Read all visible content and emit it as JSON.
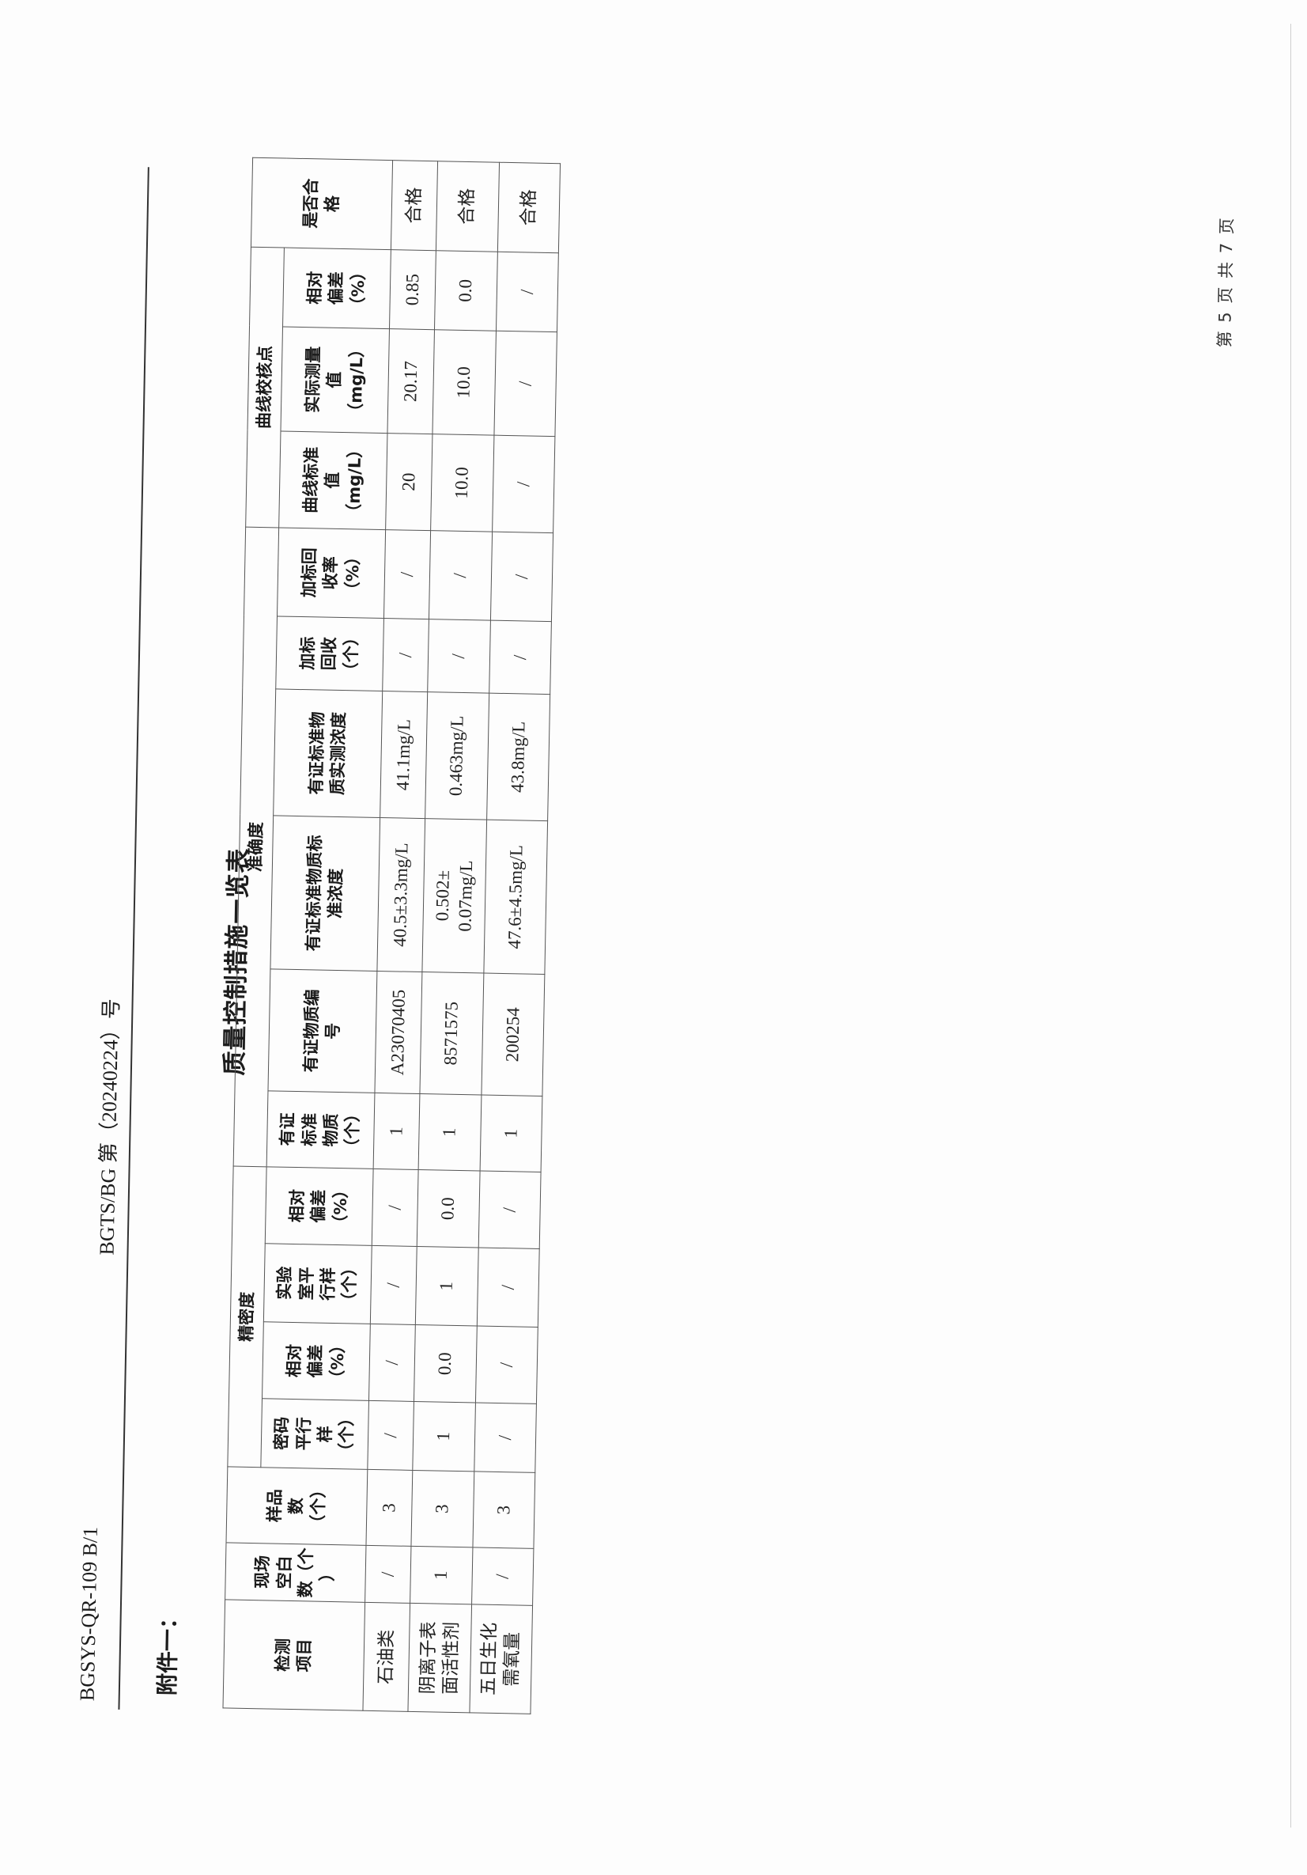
{
  "header": {
    "form_code": "BGSYS-QR-109 B/1",
    "report_no": "BGTS/BG 第（20240224）号"
  },
  "attachment_label": "附件一：",
  "title": "质量控制措施一览表",
  "table": {
    "groups": {
      "precision": "精密度",
      "accuracy": "准确度",
      "curve": "曲线校核点"
    },
    "columns": [
      "检测\n项目",
      "现场\n空白\n数（个\n）",
      "样品\n数\n（个）",
      "密码\n平行\n样\n（个）",
      "相对\n偏差\n（%）",
      "实验\n室平\n行样\n（个）",
      "相对\n偏差\n（%）",
      "有证\n标准\n物质\n（个）",
      "有证物质编\n号",
      "有证标准物质标\n准浓度",
      "有证标准物\n质实测浓度",
      "加标\n回收\n（个）",
      "加标回\n收率\n（%）",
      "曲线标准\n值\n（mg/L）",
      "实际测量\n值\n（mg/L）",
      "相对\n偏差\n（%）",
      "是否合\n格"
    ],
    "rows": [
      [
        "石油类",
        "/",
        "3",
        "/",
        "/",
        "/",
        "/",
        "1",
        "A23070405",
        "40.5±3.3mg/L",
        "41.1mg/L",
        "/",
        "/",
        "20",
        "20.17",
        "0.85",
        "合格"
      ],
      [
        "阴离子表\n面活性剂",
        "1",
        "3",
        "1",
        "0.0",
        "1",
        "0.0",
        "1",
        "8571575",
        "0.502±\n0.07mg/L",
        "0.463mg/L",
        "/",
        "/",
        "10.0",
        "10.0",
        "0.0",
        "合格"
      ],
      [
        "五日生化\n需氧量",
        "/",
        "3",
        "/",
        "/",
        "/",
        "/",
        "1",
        "200254",
        "47.6±4.5mg/L",
        "43.8mg/L",
        "/",
        "/",
        "/",
        "/",
        "/",
        "合格"
      ]
    ]
  },
  "footer": {
    "page": "第 5 页 共 7 页"
  }
}
